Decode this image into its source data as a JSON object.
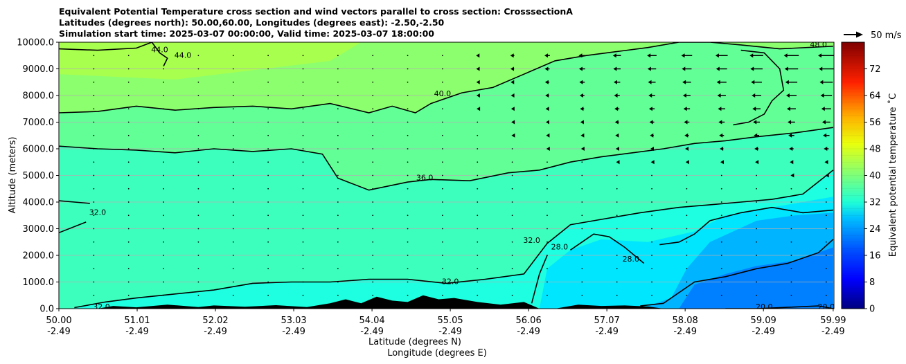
{
  "chart_data": {
    "type": "heatmap",
    "title_lines": [
      "Equivalent Potential Temperature cross section and wind vectors parallel to cross section: CrosssectionA",
      "Latitudes (degrees north): 50.00,60.00, Longitudes (degrees east): -2.50,-2.50",
      "Simulation start time: 2025-03-07 00:00:00, Valid time: 2025-03-07 18:00:00"
    ],
    "ylabel": "Altitude (meters)",
    "xlabel_lines": [
      "Latitude (degrees N)",
      "Longitude (degrees E)"
    ],
    "x_ticks": [
      {
        "lat": "50.00",
        "lon": "-2.49"
      },
      {
        "lat": "51.01",
        "lon": "-2.49"
      },
      {
        "lat": "52.02",
        "lon": "-2.49"
      },
      {
        "lat": "53.03",
        "lon": "-2.49"
      },
      {
        "lat": "54.04",
        "lon": "-2.49"
      },
      {
        "lat": "55.05",
        "lon": "-2.49"
      },
      {
        "lat": "56.06",
        "lon": "-2.49"
      },
      {
        "lat": "57.07",
        "lon": "-2.49"
      },
      {
        "lat": "58.08",
        "lon": "-2.49"
      },
      {
        "lat": "59.09",
        "lon": "-2.49"
      },
      {
        "lat": "59.99",
        "lon": "-2.49"
      }
    ],
    "xlim": [
      50.0,
      60.0
    ],
    "ylim": [
      0,
      10000
    ],
    "y_ticks": [
      "0.0",
      "1000.0",
      "2000.0",
      "3000.0",
      "4000.0",
      "5000.0",
      "6000.0",
      "7000.0",
      "8000.0",
      "9000.0",
      "10000.0"
    ],
    "grid": "horizontal",
    "colorbar": {
      "label": "Equivalent potential temperature ˚C",
      "range": [
        0,
        80
      ],
      "ticks": [
        "0",
        "8",
        "16",
        "24",
        "32",
        "40",
        "48",
        "56",
        "64",
        "72"
      ],
      "colormap": "jet"
    },
    "quiver_key": {
      "label": "50 m/s"
    },
    "contour_labels": [
      {
        "text": "44.0",
        "lat": 51.3,
        "alt": 9700
      },
      {
        "text": "44.0",
        "lat": 51.6,
        "alt": 9500
      },
      {
        "text": "40.0",
        "lat": 54.95,
        "alt": 8050
      },
      {
        "text": "36.0",
        "lat": 54.72,
        "alt": 4900
      },
      {
        "text": "32.0",
        "lat": 50.5,
        "alt": 3600
      },
      {
        "text": "32.0",
        "lat": 50.55,
        "alt": 50
      },
      {
        "text": "32.0",
        "lat": 55.05,
        "alt": 1000
      },
      {
        "text": "32.0",
        "lat": 56.1,
        "alt": 2550
      },
      {
        "text": "28.0",
        "lat": 56.46,
        "alt": 2300
      },
      {
        "text": "28.0",
        "lat": 57.38,
        "alt": 1850
      },
      {
        "text": "20.0",
        "lat": 59.1,
        "alt": 50
      },
      {
        "text": "20.0",
        "lat": 59.9,
        "alt": 50
      },
      {
        "text": "48.0",
        "lat": 59.8,
        "alt": 9900
      }
    ],
    "contours": [
      {
        "value": 44,
        "lat": [
          50.0,
          50.5,
          51.0,
          51.2
        ],
        "alt": [
          9750,
          9700,
          9780,
          10000
        ]
      },
      {
        "value": 44,
        "lat": [
          51.2,
          51.3,
          51.4,
          51.35
        ],
        "alt": [
          10000,
          9600,
          9400,
          9100
        ]
      },
      {
        "value": 40,
        "lat": [
          50.0,
          50.5,
          51.0,
          51.5,
          52.0,
          52.5,
          53.0,
          53.5,
          54.0,
          54.3,
          54.6,
          54.8,
          55.2,
          55.6,
          56.0,
          56.4,
          56.8,
          57.2,
          57.6,
          58.0,
          58.4,
          58.8,
          59.3,
          59.99
        ],
        "alt": [
          7350,
          7400,
          7600,
          7450,
          7550,
          7600,
          7500,
          7700,
          7350,
          7600,
          7350,
          7700,
          8100,
          8300,
          8800,
          9300,
          9500,
          9650,
          9800,
          10000,
          10000,
          9900,
          9750,
          9850
        ]
      },
      {
        "value": 40,
        "lat": [
          58.8,
          59.1,
          59.3,
          59.35,
          59.2,
          59.1,
          58.9,
          58.7
        ],
        "alt": [
          9700,
          9600,
          9000,
          8200,
          7800,
          7300,
          7000,
          6900
        ]
      },
      {
        "value": 36,
        "lat": [
          50.0,
          50.5,
          51.0,
          51.5,
          52.0,
          52.5,
          53.0,
          53.4,
          53.6,
          54.0,
          54.5,
          54.8,
          55.3,
          55.8,
          56.2,
          56.6,
          57.0,
          57.4,
          57.8,
          58.2,
          58.6,
          59.0,
          59.5,
          59.99
        ],
        "alt": [
          6100,
          6000,
          5950,
          5850,
          6000,
          5900,
          6000,
          5800,
          4900,
          4450,
          4750,
          4850,
          4800,
          5100,
          5200,
          5500,
          5700,
          5850,
          6000,
          6200,
          6300,
          6450,
          6600,
          6800
        ]
      },
      {
        "value": 32,
        "lat": [
          50.0,
          50.4
        ],
        "alt": [
          4050,
          3950
        ]
      },
      {
        "value": 32,
        "lat": [
          50.0,
          50.35
        ],
        "alt": [
          2850,
          3250
        ]
      },
      {
        "value": 32,
        "lat": [
          50.2,
          50.6,
          51.0,
          51.5,
          52.0,
          52.5,
          53.0,
          53.5,
          54.0,
          54.5,
          55.0,
          55.5,
          56.0,
          56.3,
          56.6,
          57.0,
          57.5,
          58.0,
          58.4,
          58.8,
          59.2,
          59.6,
          59.99
        ],
        "alt": [
          40,
          250,
          400,
          550,
          700,
          950,
          1000,
          1000,
          1100,
          1100,
          950,
          1100,
          1300,
          2450,
          3150,
          3350,
          3600,
          3800,
          3900,
          4000,
          4100,
          4300,
          5200
        ]
      },
      {
        "value": 28,
        "lat": [
          56.6,
          56.9,
          57.1,
          57.3,
          57.55
        ],
        "alt": [
          2200,
          2800,
          2700,
          2300,
          1700
        ]
      },
      {
        "value": 28,
        "lat": [
          57.75,
          58.0,
          58.2,
          58.4,
          58.8,
          59.2,
          59.6,
          59.99
        ],
        "alt": [
          2400,
          2500,
          2800,
          3300,
          3600,
          3800,
          3600,
          3700
        ]
      },
      {
        "value": 28,
        "lat": [
          56.3,
          56.2,
          56.1
        ],
        "alt": [
          2000,
          1300,
          200
        ]
      },
      {
        "value": 24,
        "lat": [
          57.5,
          57.8,
          58.2,
          58.6,
          59.0,
          59.4,
          59.8,
          59.99
        ],
        "alt": [
          100,
          200,
          1000,
          1200,
          1500,
          1700,
          2100,
          2600
        ]
      },
      {
        "value": 20,
        "lat": [
          58.6,
          59.0,
          59.4,
          59.8,
          59.99
        ],
        "alt": [
          0,
          0,
          50,
          100,
          0
        ]
      }
    ],
    "wind_vectors": {
      "lat": [
        50.45,
        50.9,
        51.35,
        51.8,
        52.25,
        52.7,
        53.15,
        53.6,
        54.05,
        54.5,
        54.95,
        55.4,
        55.85,
        56.3,
        56.75,
        57.2,
        57.65,
        58.1,
        58.55,
        59.0,
        59.45,
        59.9
      ],
      "alt": [
        500,
        1000,
        1500,
        2000,
        2500,
        3000,
        3500,
        4000,
        4500,
        5000,
        5500,
        6000,
        6500,
        7000,
        7500,
        8000,
        8500,
        9000,
        9500
      ],
      "u_max_ms": -15
    },
    "terrain": {
      "lat": [
        50.0,
        50.5,
        50.7,
        51.0,
        51.4,
        51.8,
        52.0,
        52.4,
        52.8,
        53.2,
        53.5,
        53.7,
        53.9,
        54.1,
        54.3,
        54.5,
        54.7,
        54.9,
        55.1,
        55.4,
        55.7,
        56.0,
        56.2,
        56.4,
        56.7,
        57.0,
        57.3,
        57.6,
        57.8,
        59.99
      ],
      "alt": [
        0,
        0,
        100,
        50,
        150,
        60,
        120,
        70,
        130,
        60,
        200,
        350,
        200,
        450,
        300,
        250,
        500,
        350,
        400,
        250,
        150,
        250,
        0,
        0,
        150,
        100,
        120,
        80,
        0,
        0
      ]
    }
  }
}
